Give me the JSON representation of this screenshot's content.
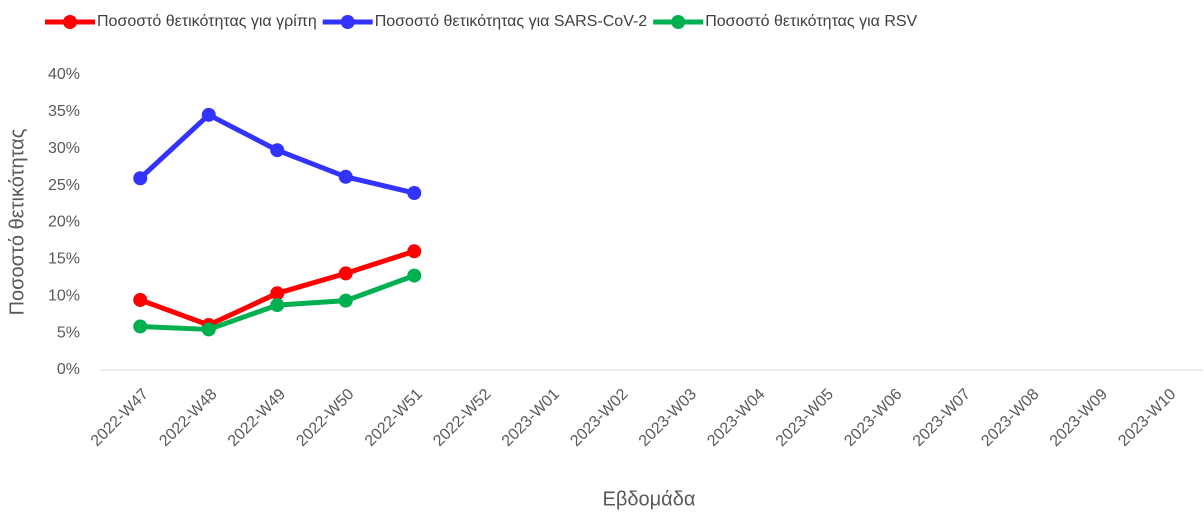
{
  "chart_data": {
    "type": "line",
    "categories": [
      "2022-W47",
      "2022-W48",
      "2022-W49",
      "2022-W50",
      "2022-W51",
      "2022-W52",
      "2023-W01",
      "2023-W02",
      "2023-W03",
      "2023-W04",
      "2023-W05",
      "2023-W06",
      "2023-W07",
      "2023-W08",
      "2023-W09",
      "2023-W10"
    ],
    "series": [
      {
        "name": "Ποσοστό θετικότητας για γρίπη",
        "color": "#ff0000",
        "values": [
          9.5,
          6.1,
          10.4,
          13.1,
          16.1,
          null,
          null,
          null,
          null,
          null,
          null,
          null,
          null,
          null,
          null,
          null
        ]
      },
      {
        "name": "Ποσοστό θετικότητας για SARS-CoV-2",
        "color": "#3333ff",
        "values": [
          26.0,
          34.6,
          29.8,
          26.2,
          24.0,
          null,
          null,
          null,
          null,
          null,
          null,
          null,
          null,
          null,
          null,
          null
        ]
      },
      {
        "name": "Ποσοστό θετικότητας για RSV",
        "color": "#00b050",
        "values": [
          5.9,
          5.5,
          8.8,
          9.4,
          12.8,
          null,
          null,
          null,
          null,
          null,
          null,
          null,
          null,
          null,
          null,
          null
        ]
      }
    ],
    "x_label": "Εβδομάδα",
    "y_label": "Ποσοστό θετικότητας",
    "ylim": [
      0,
      40
    ],
    "yticks": [
      {
        "value": 0,
        "label": "0%"
      },
      {
        "value": 5,
        "label": "5%"
      },
      {
        "value": 10,
        "label": "10%"
      },
      {
        "value": 15,
        "label": "15%"
      },
      {
        "value": 20,
        "label": "20%"
      },
      {
        "value": 25,
        "label": "25%"
      },
      {
        "value": 30,
        "label": "30%"
      },
      {
        "value": 35,
        "label": "35%"
      },
      {
        "value": 40,
        "label": "40%"
      }
    ],
    "legend": "top",
    "grid": false
  }
}
